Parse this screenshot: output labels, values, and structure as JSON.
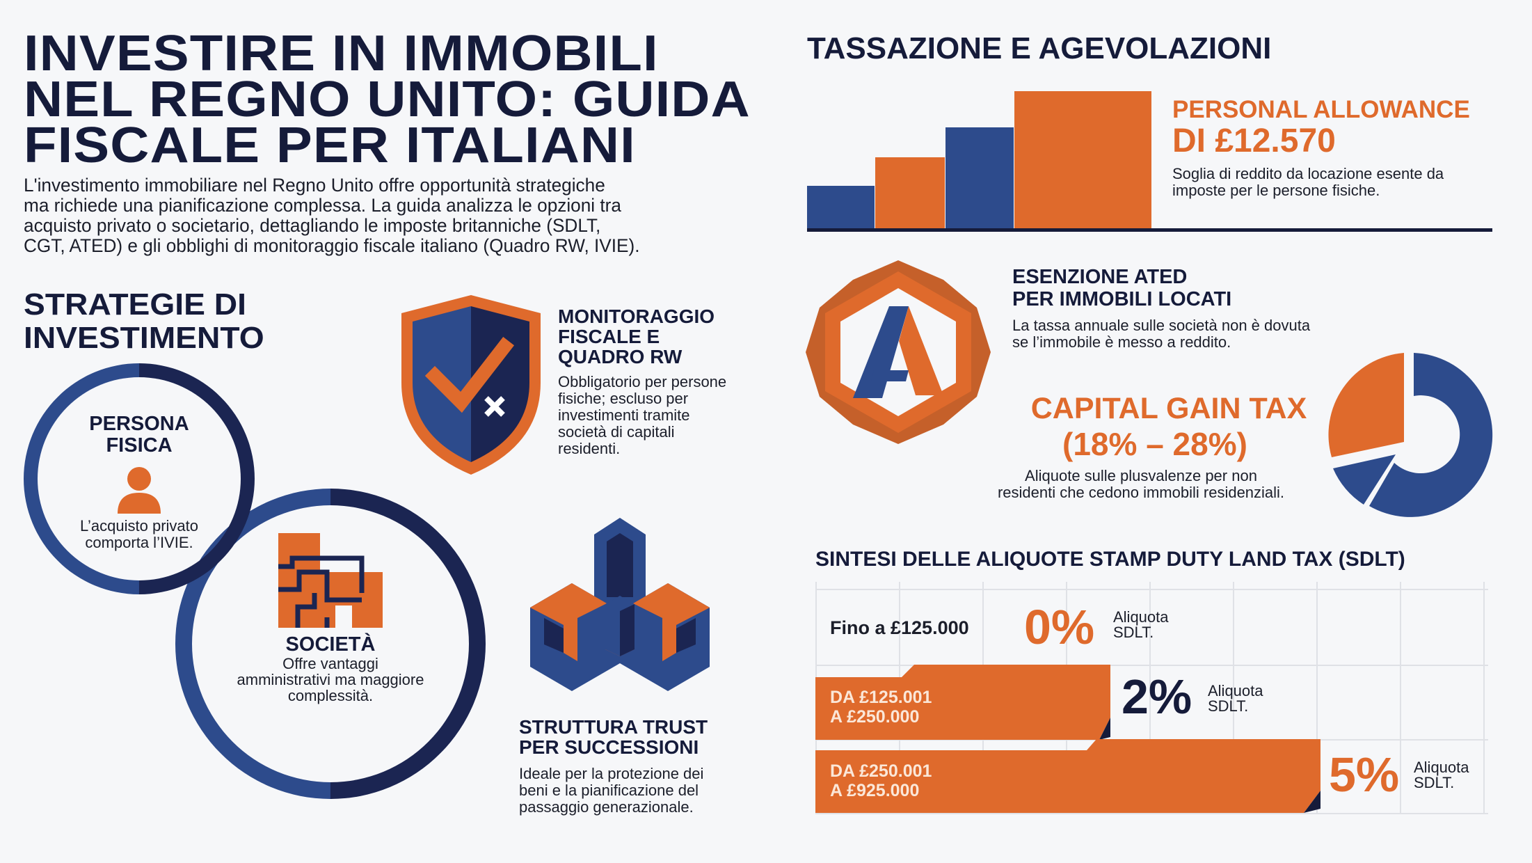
{
  "header": {
    "title_lines": [
      "INVESTIRE IN IMMOBILI",
      "NEL REGNO UNITO: GUIDA",
      "FISCALE PER ITALIANI"
    ],
    "intro_lines": [
      "L'investimento immobiliare nel Regno Unito offre opportunità strategiche",
      "ma richiede una pianificazione complessa. La guida analizza le opzioni tra",
      "acquisto privato o societario, dettagliando le imposte britanniche (SDLT,",
      "CGT, ATED) e gli obblighi di monitoraggio fiscale italiano (Quadro RW, IVIE)."
    ]
  },
  "strategies": {
    "title_lines": [
      "STRATEGIE DI",
      "INVESTIMENTO"
    ],
    "persona": {
      "title_lines": [
        "PERSONA",
        "FISICA"
      ],
      "desc_lines": [
        "L’acquisto privato",
        "comporta l’IVIE."
      ],
      "icon": "person-icon"
    },
    "societa": {
      "title": "SOCIETÀ",
      "desc_lines": [
        "Offre vantaggi",
        "amministrativi ma maggiore",
        "complessità."
      ],
      "icon": "building-icon"
    },
    "monitoraggio": {
      "title_lines": [
        "MONITORAGGIO",
        "FISCALE E",
        "QUADRO RW"
      ],
      "desc_lines": [
        "Obbligatorio per persone",
        "fisiche; escluso per",
        "investimenti tramite",
        "società di capitali",
        "residenti."
      ],
      "icon": "shield-check-icon"
    },
    "trust": {
      "title_lines": [
        "STRUTTURA TRUST",
        "PER SUCCESSIONI"
      ],
      "desc_lines": [
        "Ideale per la protezione dei",
        "beni e la pianificazione del",
        "passaggio generazionale."
      ],
      "icon": "cube-structure-icon"
    }
  },
  "taxes": {
    "title": "TASSAZIONE E AGEVOLAZIONI",
    "allowance": {
      "title_lines": [
        "PERSONAL ALLOWANCE",
        "DI £12.570"
      ],
      "desc_lines": [
        "Soglia di reddito da locazione esente da",
        "imposte per le persone fisiche."
      ],
      "icon": "bar-steps-icon"
    },
    "ated": {
      "title_lines": [
        "ESENZIONE ATED",
        "PER IMMOBILI LOCATI"
      ],
      "desc_lines": [
        "La tassa annuale sulle società non è dovuta",
        "se l’immobile è messo a reddito."
      ],
      "icon": "hexagon-a-badge-icon"
    },
    "cgt": {
      "title_lines": [
        "CAPITAL GAIN TAX",
        "(18% – 28%)"
      ],
      "desc_lines": [
        "Aliquote sulle plusvalenze per non",
        "residenti che cedono immobili residenziali."
      ],
      "icon": "donut-chart-icon"
    }
  },
  "sdlt": {
    "title": "SINTESI DELLE ALIQUOTE STAMP DUTY LAND TAX (SDLT)",
    "rows": [
      {
        "range_lines": [
          "Fino a £125.000"
        ],
        "rate": "0%",
        "label_lines": [
          "Aliquota",
          "SDLT."
        ]
      },
      {
        "range_lines": [
          "DA £125.001",
          "A £250.000"
        ],
        "rate": "2%",
        "label_lines": [
          "Aliquota",
          "SDLT."
        ]
      },
      {
        "range_lines": [
          "DA £250.001",
          "A £925.000"
        ],
        "rate": "5%",
        "label_lines": [
          "Aliquota",
          "SDLT."
        ]
      }
    ]
  },
  "colors": {
    "navy": "#151b3a",
    "blue": "#2d4b8c",
    "dark_navy": "#1b2552",
    "orange": "#df6a2c",
    "background": "#f6f7f9"
  }
}
